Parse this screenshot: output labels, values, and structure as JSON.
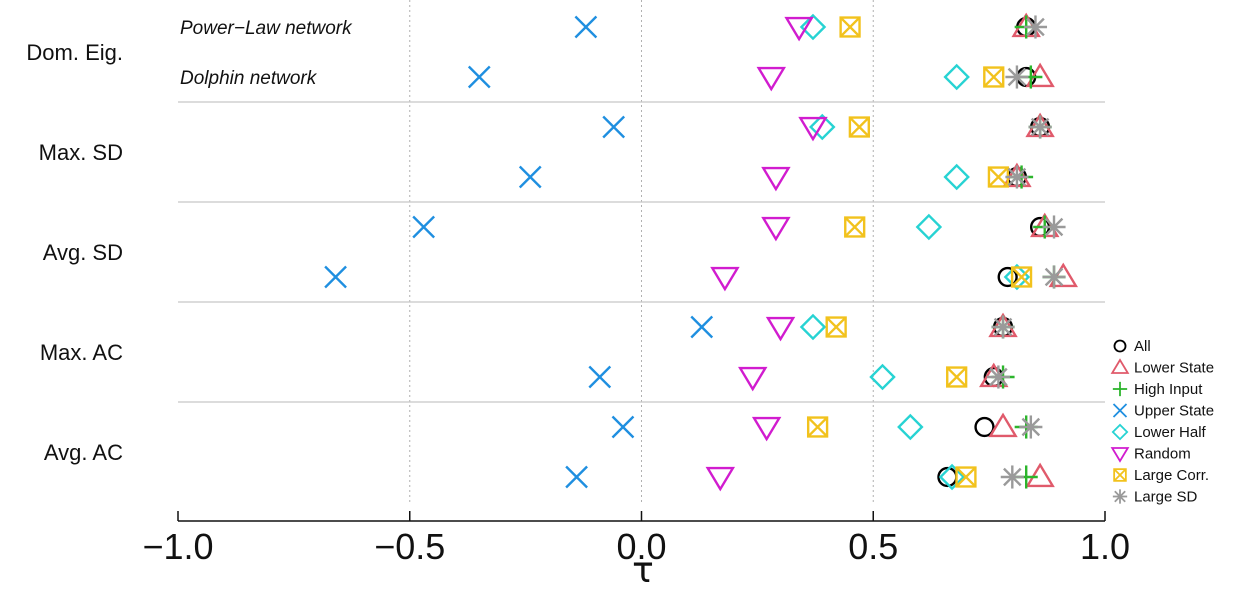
{
  "chart_data": {
    "type": "scatter",
    "title": "",
    "xlabel": "τ",
    "ylabel": "",
    "xlim": [
      -1.0,
      1.0
    ],
    "xticks": [
      -1.0,
      -0.5,
      0.0,
      0.5,
      1.0
    ],
    "xtick_labels": [
      "−1.0",
      "−0.5",
      "0.0",
      "0.5",
      "1.0"
    ],
    "grid": "vertical dotted lines at -0.5, 0.0, 0.5",
    "legend_position": "right",
    "groups": [
      "Dom. Eig.",
      "Max. SD",
      "Avg. SD",
      "Max. AC",
      "Avg. AC"
    ],
    "networks": [
      "Power−Law network",
      "Dolphin network"
    ],
    "series": [
      {
        "name": "All",
        "marker": "circle",
        "color": "#000000",
        "values": {
          "Dom. Eig.": [
            0.83,
            0.83
          ],
          "Max. SD": [
            0.86,
            0.81
          ],
          "Avg. SD": [
            0.86,
            0.79
          ],
          "Max. AC": [
            0.78,
            0.76
          ],
          "Avg. AC": [
            0.74,
            0.66
          ]
        }
      },
      {
        "name": "Lower State",
        "marker": "triangle-up",
        "color": "#e05a6b",
        "values": {
          "Dom. Eig.": [
            0.83,
            0.86
          ],
          "Max. SD": [
            0.86,
            0.81
          ],
          "Avg. SD": [
            0.87,
            0.91
          ],
          "Max. AC": [
            0.78,
            0.76
          ],
          "Avg. AC": [
            0.78,
            0.86
          ]
        }
      },
      {
        "name": "High Input",
        "marker": "plus",
        "color": "#2cb52c",
        "values": {
          "Dom. Eig.": [
            0.83,
            0.84
          ],
          "Max. SD": [
            0.86,
            0.82
          ],
          "Avg. SD": [
            0.87,
            0.89
          ],
          "Max. AC": [
            0.78,
            0.78
          ],
          "Avg. AC": [
            0.83,
            0.83
          ]
        }
      },
      {
        "name": "Upper State",
        "marker": "x",
        "color": "#1f8fe0",
        "values": {
          "Dom. Eig.": [
            -0.12,
            -0.35
          ],
          "Max. SD": [
            -0.06,
            -0.24
          ],
          "Avg. SD": [
            -0.47,
            -0.66
          ],
          "Max. AC": [
            0.13,
            -0.09
          ],
          "Avg. AC": [
            -0.04,
            -0.14
          ]
        }
      },
      {
        "name": "Lower Half",
        "marker": "diamond",
        "color": "#27d3d3",
        "values": {
          "Dom. Eig.": [
            0.37,
            0.68
          ],
          "Max. SD": [
            0.39,
            0.68
          ],
          "Avg. SD": [
            0.62,
            0.81
          ],
          "Max. AC": [
            0.37,
            0.52
          ],
          "Avg. AC": [
            0.58,
            0.67
          ]
        }
      },
      {
        "name": "Random",
        "marker": "triangle-down",
        "color": "#d11ccf",
        "values": {
          "Dom. Eig.": [
            0.34,
            0.28
          ],
          "Max. SD": [
            0.37,
            0.29
          ],
          "Avg. SD": [
            0.29,
            0.18
          ],
          "Max. AC": [
            0.3,
            0.24
          ],
          "Avg. AC": [
            0.27,
            0.17
          ]
        }
      },
      {
        "name": "Large Corr.",
        "marker": "square-x",
        "color": "#f2c21d",
        "values": {
          "Dom. Eig.": [
            0.45,
            0.76
          ],
          "Max. SD": [
            0.47,
            0.77
          ],
          "Avg. SD": [
            0.46,
            0.82
          ],
          "Max. AC": [
            0.42,
            0.68
          ],
          "Avg. AC": [
            0.38,
            0.7
          ]
        }
      },
      {
        "name": "Large SD",
        "marker": "asterisk",
        "color": "#9a9a9a",
        "values": {
          "Dom. Eig.": [
            0.85,
            0.81
          ],
          "Max. SD": [
            0.86,
            0.81
          ],
          "Avg. SD": [
            0.89,
            0.89
          ],
          "Max. AC": [
            0.78,
            0.77
          ],
          "Avg. AC": [
            0.84,
            0.8
          ]
        }
      }
    ]
  }
}
